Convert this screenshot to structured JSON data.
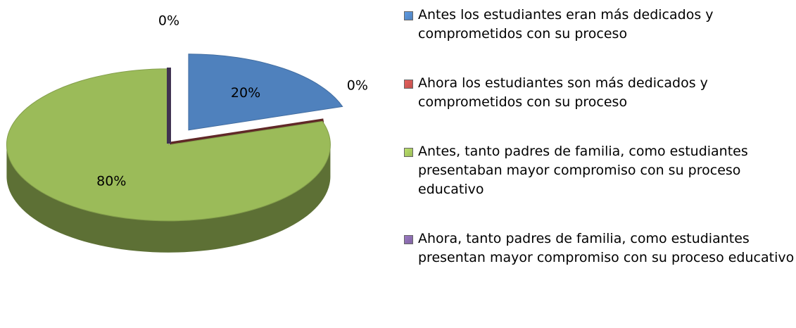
{
  "chart_data": {
    "type": "pie",
    "categories": [
      "Antes los estudiantes eran más dedicados y comprometidos con su proceso",
      "Ahora los estudiantes son más dedicados y comprometidos con su proceso",
      "Antes, tanto padres de familia, como estudiantes presentaban mayor compromiso con su proceso educativo",
      "Ahora, tanto padres de familia, como estudiantes presentan mayor compromiso con su proceso educativo"
    ],
    "values": [
      20,
      0,
      80,
      0
    ],
    "value_labels": [
      "20%",
      "0%",
      "80%",
      "0%"
    ],
    "colors": [
      "#4f81bd",
      "#c0504d",
      "#9bbb59",
      "#8064a2"
    ],
    "legend": "right"
  }
}
